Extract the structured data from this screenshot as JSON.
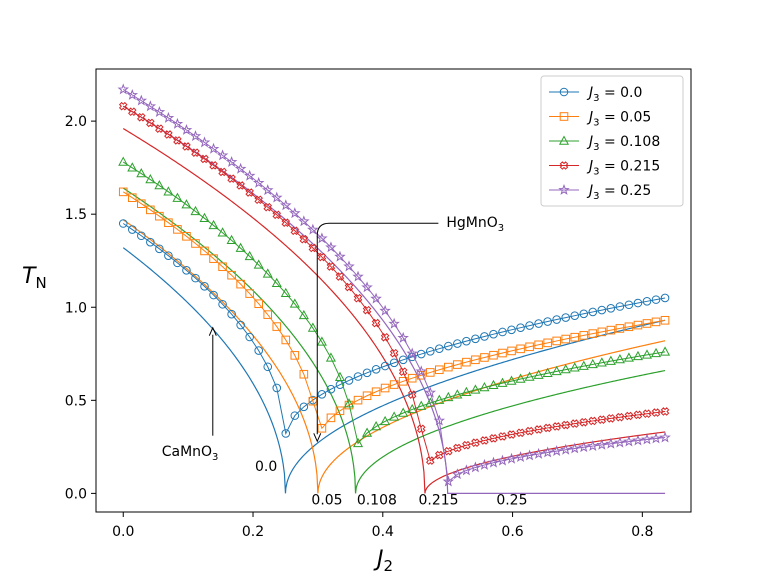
{
  "chart_data": {
    "type": "line",
    "xlabel": "J",
    "xlabel_sub": "2",
    "ylabel": "T",
    "ylabel_sub": "N",
    "xlim": [
      -0.042,
      0.875
    ],
    "ylim": [
      -0.1,
      2.28
    ],
    "xticks": [
      0.0,
      0.2,
      0.4,
      0.6,
      0.8
    ],
    "xtick_labels": [
      "0.0",
      "0.2",
      "0.4",
      "0.6",
      "0.8"
    ],
    "yticks": [
      0.0,
      0.5,
      1.0,
      1.5,
      2.0
    ],
    "ytick_labels": [
      "0.0",
      "0.5",
      "1.0",
      "1.5",
      "2.0"
    ],
    "legend_position": "top-right",
    "series": [
      {
        "name": "J3 = 0.0",
        "legend_prefix": "J",
        "legend_sub": "3",
        "legend_value": " = 0.0",
        "color": "#1f77b4",
        "marker": "circle",
        "critical_x": 0.25,
        "marker_left": [
          1.45,
          0.3
        ],
        "marker_right": [
          0.3,
          1.05
        ],
        "line_left": [
          1.32,
          0.0
        ],
        "line_right": [
          0.0,
          0.93
        ]
      },
      {
        "name": "J3 = 0.05",
        "legend_prefix": "J",
        "legend_sub": "3",
        "legend_value": " = 0.05",
        "color": "#ff7f0e",
        "marker": "square",
        "critical_x": 0.3,
        "marker_left": [
          1.62,
          0.28
        ],
        "marker_right": [
          0.28,
          0.93
        ],
        "line_left": [
          1.47,
          0.0
        ],
        "line_right": [
          0.0,
          0.82
        ]
      },
      {
        "name": "J3 = 0.108",
        "legend_prefix": "J",
        "legend_sub": "3",
        "legend_value": " = 0.108",
        "color": "#2ca02c",
        "marker": "triangle",
        "critical_x": 0.358,
        "marker_left": [
          1.78,
          0.22
        ],
        "marker_right": [
          0.22,
          0.76
        ],
        "line_left": [
          1.64,
          0.0
        ],
        "line_right": [
          0.0,
          0.66
        ]
      },
      {
        "name": "J3 = 0.215",
        "legend_prefix": "J",
        "legend_sub": "3",
        "legend_value": " = 0.215",
        "color": "#d62728",
        "marker": "xsquare",
        "critical_x": 0.465,
        "marker_left": [
          2.08,
          0.13
        ],
        "marker_right": [
          0.13,
          0.44
        ],
        "line_left": [
          1.96,
          0.0
        ],
        "line_right": [
          0.0,
          0.33
        ]
      },
      {
        "name": "J3 = 0.25",
        "legend_prefix": "J",
        "legend_sub": "3",
        "legend_value": " = 0.25",
        "color": "#9467bd",
        "marker": "star",
        "critical_x": 0.5,
        "marker_left": [
          2.17,
          0.05
        ],
        "marker_right": [
          0.05,
          0.3
        ],
        "line_left": [
          2.08,
          0.0
        ],
        "line_right": [
          0.0,
          0.0
        ]
      }
    ],
    "x_end": 0.835,
    "critical_labels": [
      {
        "text": "0.0",
        "x": 0.203,
        "y": 0.12
      },
      {
        "text": "0.05",
        "x": 0.29,
        "y": -0.06
      },
      {
        "text": "0.108",
        "x": 0.36,
        "y": -0.06
      },
      {
        "text": "0.215",
        "x": 0.455,
        "y": -0.06
      },
      {
        "text": "0.25",
        "x": 0.575,
        "y": -0.06
      }
    ],
    "annotations": [
      {
        "text": "CaMnO",
        "sub": "3",
        "text_x": 0.103,
        "text_y": 0.2,
        "arrow_to_x": 0.138,
        "arrow_to_y": 0.89
      },
      {
        "text": "HgMnO",
        "sub": "3",
        "text_x": 0.498,
        "text_y": 1.43,
        "arrow_to_x": 0.299,
        "arrow_to_y": 0.28
      }
    ]
  }
}
